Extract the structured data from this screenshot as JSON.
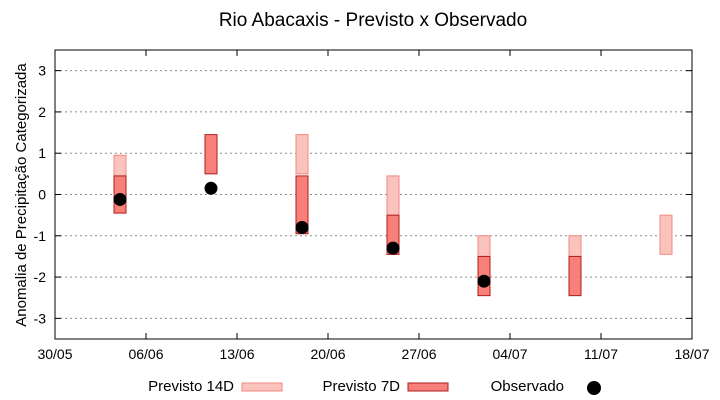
{
  "chart_data": {
    "type": "scatter",
    "title": "Rio Abacaxis - Previsto x Observado",
    "xlabel": "",
    "ylabel": "Anomalia de Precipitação Categorizada",
    "xlim": [
      "2021-05-30",
      "2021-07-18"
    ],
    "ylim": [
      -3.5,
      3.5
    ],
    "x_tick_labels": [
      "30/05",
      "06/06",
      "13/06",
      "20/06",
      "27/06",
      "04/07",
      "11/07",
      "18/07"
    ],
    "y_ticks": [
      -3,
      -2,
      -1,
      0,
      1,
      2,
      3
    ],
    "grid": true,
    "legend_position": "bottom",
    "series": [
      {
        "name": "Previsto 14D",
        "kind": "range",
        "color_fill": "#fbc3bd",
        "color_edge": "#f08a80",
        "data": [
          {
            "x": "2021-06-04",
            "low": -0.45,
            "high": 0.95
          },
          {
            "x": "2021-06-18",
            "low": 0.5,
            "high": 1.45
          },
          {
            "x": "2021-06-25",
            "low": -1.45,
            "high": 0.45
          },
          {
            "x": "2021-07-02",
            "low": -1.5,
            "high": -1.0
          },
          {
            "x": "2021-07-09",
            "low": -1.5,
            "high": -1.0
          },
          {
            "x": "2021-07-16",
            "low": -1.45,
            "high": -0.5
          }
        ]
      },
      {
        "name": "Previsto 7D",
        "kind": "range",
        "color_fill": "#f7807a",
        "color_edge": "#b21c1c",
        "data": [
          {
            "x": "2021-06-04",
            "low": -0.45,
            "high": 0.45
          },
          {
            "x": "2021-06-11",
            "low": 0.5,
            "high": 1.45
          },
          {
            "x": "2021-06-18",
            "low": -0.95,
            "high": 0.45
          },
          {
            "x": "2021-06-25",
            "low": -1.45,
            "high": -0.5
          },
          {
            "x": "2021-07-02",
            "low": -2.45,
            "high": -1.5
          },
          {
            "x": "2021-07-09",
            "low": -2.45,
            "high": -1.5
          }
        ]
      },
      {
        "name": "Observado",
        "kind": "point",
        "color": "#000000",
        "data": [
          {
            "x": "2021-06-04",
            "y": -0.12
          },
          {
            "x": "2021-06-11",
            "y": 0.15
          },
          {
            "x": "2021-06-18",
            "y": -0.8
          },
          {
            "x": "2021-06-25",
            "y": -1.3
          },
          {
            "x": "2021-07-02",
            "y": -2.1
          }
        ]
      }
    ]
  }
}
